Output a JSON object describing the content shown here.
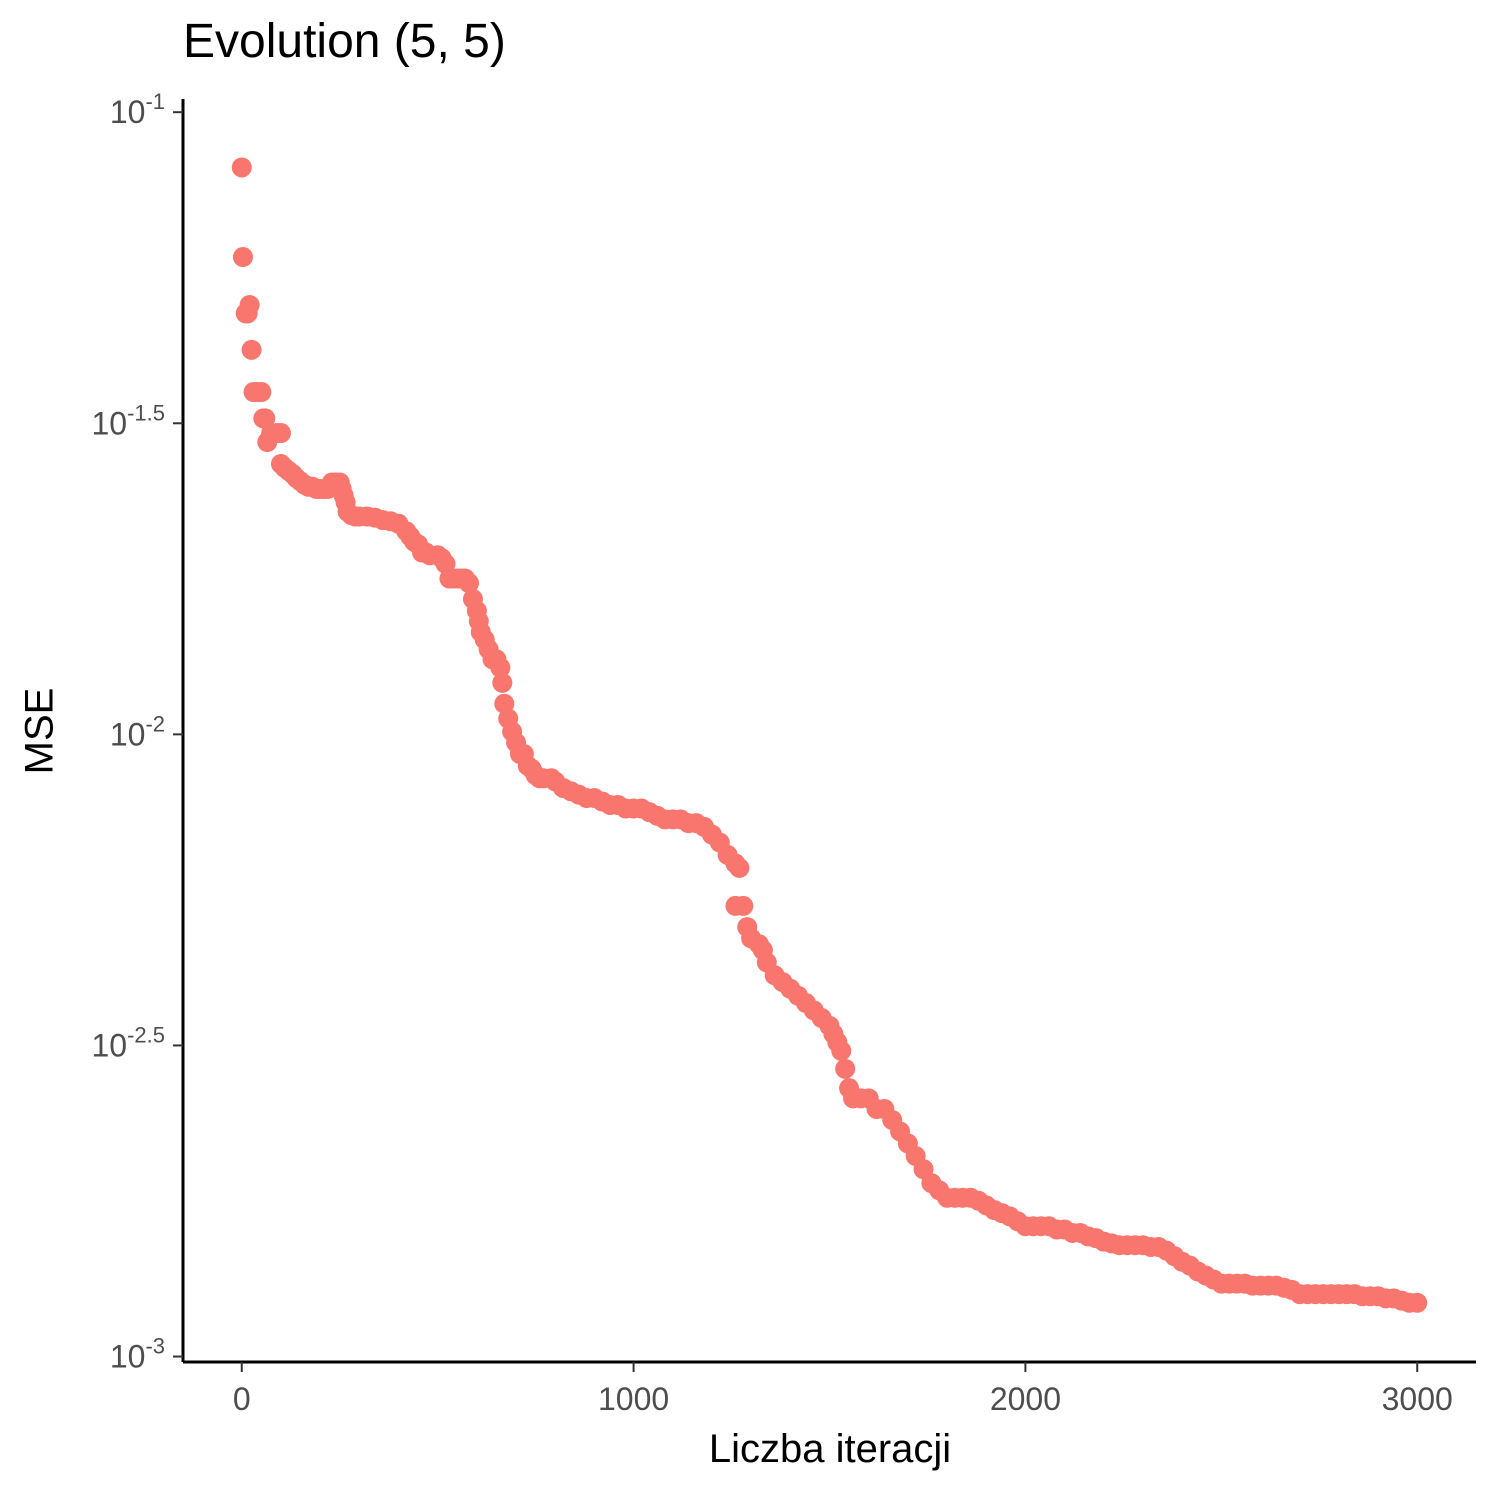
{
  "chart_data": {
    "type": "scatter",
    "title": "Evolution (5, 5)",
    "xlabel": "Liczba iteracji",
    "ylabel": "MSE",
    "xlim": [
      -150,
      3150
    ],
    "ylim": [
      0.00098,
      0.105
    ],
    "y_scale": "log10",
    "x_ticks": [
      0,
      1000,
      2000,
      3000
    ],
    "x_tick_labels": [
      "0",
      "1000",
      "2000",
      "3000"
    ],
    "y_ticks": [
      0.1,
      0.0316228,
      0.01,
      0.00316228,
      0.001
    ],
    "y_tick_labels": [
      {
        "base": "10",
        "exp": "-1"
      },
      {
        "base": "10",
        "exp": "-1.5"
      },
      {
        "base": "10",
        "exp": "-2"
      },
      {
        "base": "10",
        "exp": "-2.5"
      },
      {
        "base": "10",
        "exp": "-3"
      }
    ],
    "grid": false,
    "legend": "none",
    "point_color": "#F8766D",
    "series": [
      {
        "points": [
          [
            0,
            0.0815
          ],
          [
            3,
            0.0585
          ],
          [
            10,
            0.0475
          ],
          [
            15,
            0.0475
          ],
          [
            20,
            0.049
          ],
          [
            25,
            0.0415
          ],
          [
            30,
            0.0355
          ],
          [
            40,
            0.0355
          ],
          [
            50,
            0.0355
          ],
          [
            55,
            0.0322
          ],
          [
            60,
            0.0322
          ],
          [
            65,
            0.0295
          ],
          [
            75,
            0.0305
          ],
          [
            90,
            0.0305
          ],
          [
            100,
            0.0305
          ],
          [
            100,
            0.0272
          ],
          [
            110,
            0.0268
          ],
          [
            120,
            0.0265
          ],
          [
            130,
            0.0262
          ],
          [
            140,
            0.0258
          ],
          [
            150,
            0.0255
          ],
          [
            160,
            0.0252
          ],
          [
            170,
            0.025
          ],
          [
            180,
            0.025
          ],
          [
            190,
            0.0248
          ],
          [
            200,
            0.0248
          ],
          [
            210,
            0.0248
          ],
          [
            220,
            0.0248
          ],
          [
            230,
            0.0254
          ],
          [
            240,
            0.0254
          ],
          [
            250,
            0.0254
          ],
          [
            255,
            0.0248
          ],
          [
            260,
            0.0242
          ],
          [
            265,
            0.0236
          ],
          [
            270,
            0.0228
          ],
          [
            280,
            0.0225
          ],
          [
            290,
            0.0224
          ],
          [
            300,
            0.0224
          ],
          [
            320,
            0.0224
          ],
          [
            340,
            0.0223
          ],
          [
            360,
            0.0221
          ],
          [
            380,
            0.022
          ],
          [
            400,
            0.0218
          ],
          [
            420,
            0.0212
          ],
          [
            430,
            0.0208
          ],
          [
            440,
            0.0204
          ],
          [
            450,
            0.0202
          ],
          [
            460,
            0.0196
          ],
          [
            470,
            0.0196
          ],
          [
            480,
            0.0194
          ],
          [
            500,
            0.0194
          ],
          [
            510,
            0.0192
          ],
          [
            520,
            0.0188
          ],
          [
            530,
            0.0178
          ],
          [
            540,
            0.0178
          ],
          [
            550,
            0.0178
          ],
          [
            560,
            0.0178
          ],
          [
            570,
            0.0178
          ],
          [
            580,
            0.0175
          ],
          [
            590,
            0.0165
          ],
          [
            600,
            0.0158
          ],
          [
            605,
            0.0152
          ],
          [
            610,
            0.0146
          ],
          [
            620,
            0.0142
          ],
          [
            630,
            0.0137
          ],
          [
            640,
            0.0132
          ],
          [
            650,
            0.0132
          ],
          [
            660,
            0.0128
          ],
          [
            665,
            0.0121
          ],
          [
            670,
            0.0112
          ],
          [
            680,
            0.0106
          ],
          [
            690,
            0.0101
          ],
          [
            700,
            0.0097
          ],
          [
            710,
            0.0093
          ],
          [
            720,
            0.0093
          ],
          [
            730,
            0.0089
          ],
          [
            740,
            0.0088
          ],
          [
            750,
            0.0086
          ],
          [
            760,
            0.0085
          ],
          [
            770,
            0.0085
          ],
          [
            790,
            0.0085
          ],
          [
            800,
            0.0084
          ],
          [
            820,
            0.0082
          ],
          [
            840,
            0.0081
          ],
          [
            860,
            0.008
          ],
          [
            880,
            0.0079
          ],
          [
            900,
            0.0079
          ],
          [
            920,
            0.0078
          ],
          [
            940,
            0.0077
          ],
          [
            960,
            0.0077
          ],
          [
            980,
            0.0076
          ],
          [
            1000,
            0.0076
          ],
          [
            1020,
            0.0076
          ],
          [
            1040,
            0.0075
          ],
          [
            1060,
            0.0074
          ],
          [
            1080,
            0.0073
          ],
          [
            1100,
            0.0073
          ],
          [
            1120,
            0.0073
          ],
          [
            1140,
            0.0072
          ],
          [
            1160,
            0.0072
          ],
          [
            1180,
            0.0071
          ],
          [
            1200,
            0.0069
          ],
          [
            1220,
            0.0067
          ],
          [
            1240,
            0.0064
          ],
          [
            1260,
            0.0062
          ],
          [
            1270,
            0.0061
          ],
          [
            1260,
            0.0053
          ],
          [
            1280,
            0.0053
          ],
          [
            1290,
            0.0049
          ],
          [
            1300,
            0.0047
          ],
          [
            1320,
            0.0046
          ],
          [
            1330,
            0.0045
          ],
          [
            1340,
            0.0043
          ],
          [
            1360,
            0.0041
          ],
          [
            1380,
            0.004
          ],
          [
            1400,
            0.0039
          ],
          [
            1420,
            0.0038
          ],
          [
            1440,
            0.0037
          ],
          [
            1460,
            0.0036
          ],
          [
            1480,
            0.0035
          ],
          [
            1500,
            0.0034
          ],
          [
            1510,
            0.0033
          ],
          [
            1520,
            0.0032
          ],
          [
            1530,
            0.0031
          ],
          [
            1540,
            0.0029
          ],
          [
            1550,
            0.0027
          ],
          [
            1560,
            0.0026
          ],
          [
            1580,
            0.0026
          ],
          [
            1600,
            0.0026
          ],
          [
            1620,
            0.0025
          ],
          [
            1640,
            0.0025
          ],
          [
            1660,
            0.0024
          ],
          [
            1680,
            0.0023
          ],
          [
            1700,
            0.0022
          ],
          [
            1720,
            0.0021
          ],
          [
            1740,
            0.002
          ],
          [
            1760,
            0.0019
          ],
          [
            1780,
            0.00185
          ],
          [
            1800,
            0.0018
          ],
          [
            1820,
            0.0018
          ],
          [
            1840,
            0.0018
          ],
          [
            1860,
            0.0018
          ],
          [
            1880,
            0.00178
          ],
          [
            1900,
            0.00175
          ],
          [
            1920,
            0.00172
          ],
          [
            1940,
            0.0017
          ],
          [
            1960,
            0.00168
          ],
          [
            1980,
            0.00165
          ],
          [
            2000,
            0.00162
          ],
          [
            2020,
            0.00162
          ],
          [
            2040,
            0.00162
          ],
          [
            2060,
            0.00162
          ],
          [
            2080,
            0.0016
          ],
          [
            2100,
            0.0016
          ],
          [
            2120,
            0.00158
          ],
          [
            2140,
            0.00158
          ],
          [
            2160,
            0.00156
          ],
          [
            2180,
            0.00155
          ],
          [
            2200,
            0.00153
          ],
          [
            2220,
            0.00152
          ],
          [
            2240,
            0.00151
          ],
          [
            2260,
            0.00151
          ],
          [
            2280,
            0.00151
          ],
          [
            2300,
            0.00151
          ],
          [
            2320,
            0.0015
          ],
          [
            2340,
            0.0015
          ],
          [
            2360,
            0.00148
          ],
          [
            2380,
            0.00145
          ],
          [
            2400,
            0.00142
          ],
          [
            2420,
            0.0014
          ],
          [
            2440,
            0.00137
          ],
          [
            2460,
            0.00135
          ],
          [
            2480,
            0.00133
          ],
          [
            2500,
            0.00131
          ],
          [
            2520,
            0.00131
          ],
          [
            2540,
            0.00131
          ],
          [
            2560,
            0.00131
          ],
          [
            2580,
            0.0013
          ],
          [
            2600,
            0.0013
          ],
          [
            2620,
            0.0013
          ],
          [
            2640,
            0.0013
          ],
          [
            2660,
            0.00129
          ],
          [
            2680,
            0.00128
          ],
          [
            2700,
            0.00126
          ],
          [
            2720,
            0.00126
          ],
          [
            2740,
            0.00126
          ],
          [
            2760,
            0.00126
          ],
          [
            2780,
            0.00126
          ],
          [
            2800,
            0.00126
          ],
          [
            2820,
            0.00126
          ],
          [
            2840,
            0.00126
          ],
          [
            2860,
            0.00125
          ],
          [
            2880,
            0.00125
          ],
          [
            2900,
            0.00125
          ],
          [
            2920,
            0.00124
          ],
          [
            2940,
            0.00124
          ],
          [
            2960,
            0.00123
          ],
          [
            2980,
            0.00122
          ],
          [
            3000,
            0.00122
          ]
        ]
      }
    ]
  }
}
